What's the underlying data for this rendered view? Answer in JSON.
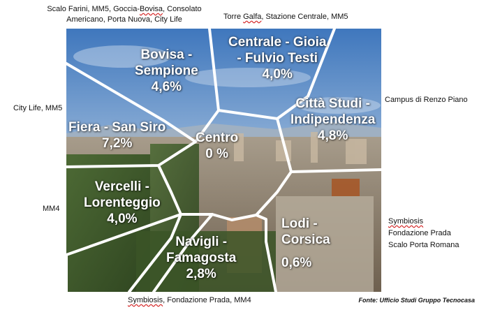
{
  "zones": [
    {
      "id": "bovisa",
      "name": "Bovisa - Sempione",
      "pct": "4,6%"
    },
    {
      "id": "centrale",
      "name": "Centrale - Gioia - Fulvio Testi",
      "pct": "4,0%"
    },
    {
      "id": "citta-studi",
      "name": "Città Studi - Indipendenza",
      "pct": "4,8%"
    },
    {
      "id": "fiera",
      "name": "Fiera - San Siro",
      "pct": "7,2%"
    },
    {
      "id": "centro",
      "name": "Centro",
      "pct": "0 %"
    },
    {
      "id": "vercelli",
      "name": "Vercelli - Lorenteggio",
      "pct": "4,0%"
    },
    {
      "id": "navigli",
      "name": "Navigli - Famagosta",
      "pct": "2,8%"
    },
    {
      "id": "lodi",
      "name": "Lodi - Corsica",
      "pct": "0,6%"
    }
  ],
  "labels": {
    "bovisa": {
      "l1": "Bovisa -",
      "l2": "Sempione",
      "pct": "4,6%"
    },
    "centrale": {
      "l1": "Centrale - Gioia",
      "l2": "- Fulvio Testi",
      "pct": "4,0%"
    },
    "citta_studi": {
      "l1": "Città Studi -",
      "l2": "Indipendenza",
      "pct": "4,8%"
    },
    "fiera": {
      "l1": "Fiera -  San Siro",
      "pct": "7,2%"
    },
    "centro": {
      "l1": "Centro",
      "pct": "0 %"
    },
    "vercelli": {
      "l1": "Vercelli -",
      "l2": "Lorenteggio",
      "pct": "4,0%"
    },
    "navigli": {
      "l1": "Navigli -",
      "l2": "Famagosta",
      "pct": "2,8%"
    },
    "lodi": {
      "l1": "Lodi -",
      "l2": "Corsica",
      "pct": "0,6%"
    }
  },
  "annotations": {
    "top_left_1a": "Scalo Farini, MM5, Goccia-",
    "top_left_1b": "Bovisa",
    "top_left_1c": ", Consolato",
    "top_left_2": "Americano, Porta Nuova, City Life",
    "top_right_a": "Torre ",
    "top_right_b": "Galfa",
    "top_right_c": ", Stazione Centrale, MM5",
    "right_campus": "Campus di Renzo Piano",
    "left_city_life": "City Life, MM5",
    "left_mm4": "MM4",
    "right_symbiosis_1": "Symbiosis",
    "right_symbiosis_2": "Fondazione Prada",
    "right_symbiosis_3": "Scalo Porta Romana",
    "bottom_a": "Symbiosis",
    "bottom_b": ", Fondazione Prada, MM4"
  },
  "source": "Fonte: Ufficio Studi Gruppo Tecnocasa",
  "colors": {
    "divider": "#ffffff",
    "label": "#ffffff",
    "sky_top": "#4a7fc1",
    "sky_bottom": "#c9d9ea",
    "city": "#8a7a66",
    "foliage": "#3f5a2a"
  }
}
